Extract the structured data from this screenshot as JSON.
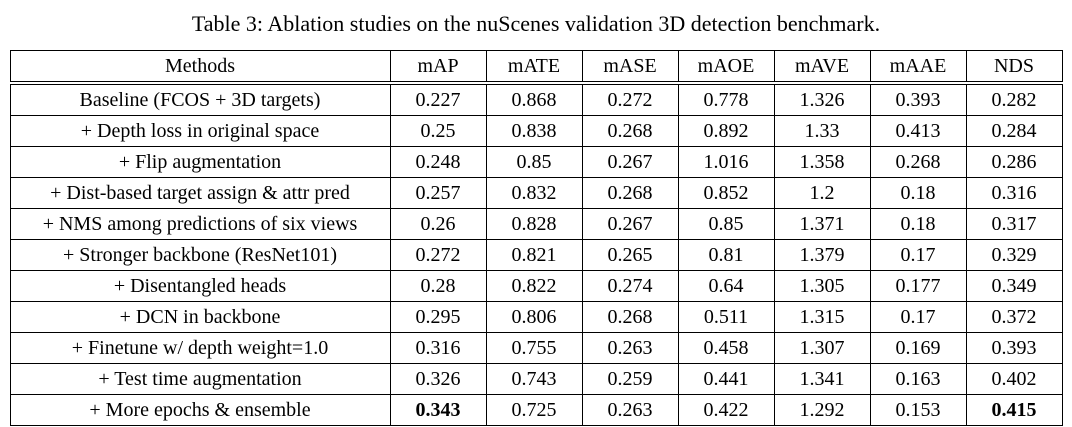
{
  "title": "Table 3: Ablation studies on the nuScenes validation 3D detection benchmark.",
  "table": {
    "headers": [
      "Methods",
      "mAP",
      "mATE",
      "mASE",
      "mAOE",
      "mAVE",
      "mAAE",
      "NDS"
    ],
    "rows": [
      {
        "method": "Baseline (FCOS + 3D targets)",
        "values": [
          "0.227",
          "0.868",
          "0.272",
          "0.778",
          "1.326",
          "0.393",
          "0.282"
        ],
        "bold": []
      },
      {
        "method": "+ Depth loss in original space",
        "values": [
          "0.25",
          "0.838",
          "0.268",
          "0.892",
          "1.33",
          "0.413",
          "0.284"
        ],
        "bold": []
      },
      {
        "method": "+ Flip augmentation",
        "values": [
          "0.248",
          "0.85",
          "0.267",
          "1.016",
          "1.358",
          "0.268",
          "0.286"
        ],
        "bold": []
      },
      {
        "method": "+ Dist-based target assign & attr pred",
        "values": [
          "0.257",
          "0.832",
          "0.268",
          "0.852",
          "1.2",
          "0.18",
          "0.316"
        ],
        "bold": []
      },
      {
        "method": "+ NMS among predictions of six views",
        "values": [
          "0.26",
          "0.828",
          "0.267",
          "0.85",
          "1.371",
          "0.18",
          "0.317"
        ],
        "bold": []
      },
      {
        "method": "+ Stronger backbone (ResNet101)",
        "values": [
          "0.272",
          "0.821",
          "0.265",
          "0.81",
          "1.379",
          "0.17",
          "0.329"
        ],
        "bold": []
      },
      {
        "method": "+ Disentangled heads",
        "values": [
          "0.28",
          "0.822",
          "0.274",
          "0.64",
          "1.305",
          "0.177",
          "0.349"
        ],
        "bold": []
      },
      {
        "method": "+ DCN in backbone",
        "values": [
          "0.295",
          "0.806",
          "0.268",
          "0.511",
          "1.315",
          "0.17",
          "0.372"
        ],
        "bold": []
      },
      {
        "method": "+ Finetune w/ depth weight=1.0",
        "values": [
          "0.316",
          "0.755",
          "0.263",
          "0.458",
          "1.307",
          "0.169",
          "0.393"
        ],
        "bold": []
      },
      {
        "method": "+ Test time augmentation",
        "values": [
          "0.326",
          "0.743",
          "0.259",
          "0.441",
          "1.341",
          "0.163",
          "0.402"
        ],
        "bold": []
      },
      {
        "method": "+ More epochs & ensemble",
        "values": [
          "0.343",
          "0.725",
          "0.263",
          "0.422",
          "1.292",
          "0.153",
          "0.415"
        ],
        "bold": [
          0,
          6
        ]
      }
    ]
  }
}
